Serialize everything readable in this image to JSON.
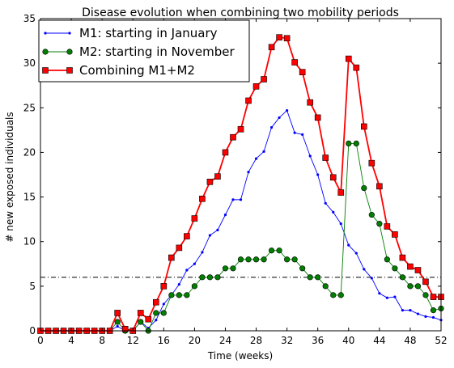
{
  "chart_data": {
    "type": "line",
    "title": "Disease evolution when combining two mobility periods",
    "xlabel": "Time (weeks)",
    "ylabel": "# new exposed individuals",
    "xlim": [
      0,
      52
    ],
    "ylim": [
      0,
      35
    ],
    "xticks": [
      "0",
      "4",
      "8",
      "12",
      "16",
      "20",
      "24",
      "28",
      "32",
      "36",
      "40",
      "44",
      "48",
      "52"
    ],
    "yticks": [
      "0",
      "5",
      "10",
      "15",
      "20",
      "25",
      "30",
      "35"
    ],
    "threshold": 6,
    "legend_position": "top-left",
    "x": [
      0,
      1,
      2,
      3,
      4,
      5,
      6,
      7,
      8,
      9,
      10,
      11,
      12,
      13,
      14,
      15,
      16,
      17,
      18,
      19,
      20,
      21,
      22,
      23,
      24,
      25,
      26,
      27,
      28,
      29,
      30,
      31,
      32,
      33,
      34,
      35,
      36,
      37,
      38,
      39,
      40,
      41,
      42,
      43,
      44,
      45,
      46,
      47,
      48,
      49,
      50,
      51,
      52
    ],
    "series": [
      {
        "name": "M1: starting in January",
        "color": "#0000ff",
        "marker": "dot",
        "values": [
          0,
          0,
          0,
          0,
          0,
          0,
          0,
          0,
          0,
          0,
          0.5,
          0,
          0,
          1,
          0.3,
          1.2,
          3,
          4,
          5.2,
          6.8,
          7.5,
          8.8,
          10.7,
          11.3,
          13,
          14.7,
          14.7,
          17.8,
          19.3,
          20.1,
          22.8,
          23.9,
          24.7,
          22.2,
          22,
          19.6,
          17.5,
          14.3,
          13.3,
          12,
          9.6,
          8.7,
          6.9,
          5.9,
          4.2,
          3.7,
          3.8,
          2.3,
          2.3,
          1.9,
          1.6,
          1.5,
          1.2
        ]
      },
      {
        "name": "M2: starting in November",
        "color": "#007f00",
        "marker": "circle",
        "values": [
          0,
          0,
          0,
          0,
          0,
          0,
          0,
          0,
          0,
          0,
          1,
          0,
          0,
          1,
          0,
          2,
          2,
          4,
          4,
          4,
          5,
          6,
          6,
          6,
          7,
          7,
          8,
          8,
          8,
          8,
          9,
          9,
          8,
          8,
          7,
          6,
          6,
          5,
          4,
          4,
          21,
          21,
          16,
          13,
          12,
          8,
          7,
          6,
          5,
          5,
          4,
          2.3,
          2.5
        ]
      },
      {
        "name": "Combining M1+M2",
        "color": "#ff0000",
        "marker": "square",
        "values": [
          0,
          0,
          0,
          0,
          0,
          0,
          0,
          0,
          0,
          0,
          2,
          0.2,
          0,
          2,
          1.3,
          3.2,
          5,
          8.2,
          9.3,
          10.6,
          12.6,
          14.8,
          16.7,
          17.3,
          20,
          21.7,
          22.6,
          25.8,
          27.4,
          28.2,
          31.8,
          32.9,
          32.8,
          30.1,
          29,
          25.6,
          23.9,
          19.4,
          17.2,
          15.5,
          30.5,
          29.5,
          22.9,
          18.8,
          16.2,
          11.7,
          10.8,
          8.2,
          7.2,
          6.8,
          5.5,
          3.8,
          3.8
        ]
      }
    ]
  }
}
